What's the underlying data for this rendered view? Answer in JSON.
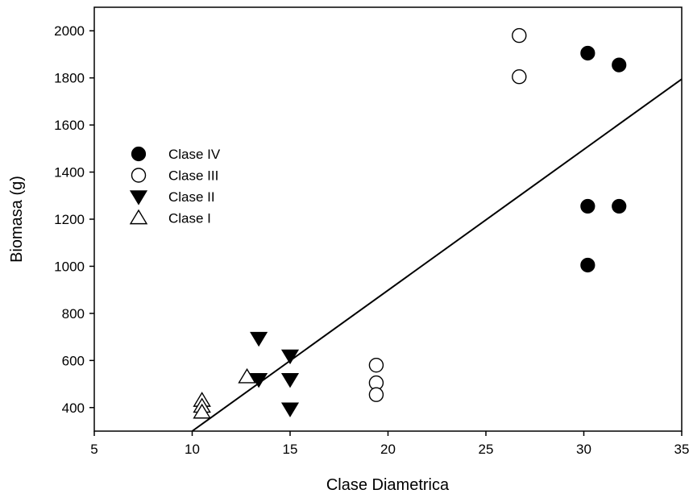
{
  "chart_data": {
    "type": "scatter",
    "xlabel": "Clase Diametrica",
    "ylabel": "Biomasa (g)",
    "xlim": [
      5,
      35
    ],
    "ylim": [
      300,
      2100
    ],
    "xticks": [
      5,
      10,
      15,
      20,
      25,
      30,
      35
    ],
    "yticks": [
      400,
      600,
      800,
      1000,
      1200,
      1400,
      1600,
      1800,
      2000
    ],
    "xtick_labels": [
      "5",
      "10",
      "15",
      "20",
      "25",
      "30",
      "35"
    ],
    "ytick_labels": [
      "400",
      "600",
      "800",
      "1000",
      "1200",
      "1400",
      "1600",
      "1800",
      "2000"
    ],
    "grid": false,
    "legend_position": "left-middle",
    "series": [
      {
        "name": "Clase IV",
        "marker": "filled-circle",
        "color": "#000000",
        "points": [
          [
            30.2,
            1905
          ],
          [
            31.8,
            1855
          ],
          [
            30.2,
            1255
          ],
          [
            31.8,
            1255
          ],
          [
            30.2,
            1005
          ]
        ]
      },
      {
        "name": "Clase III",
        "marker": "open-circle",
        "color": "#000000",
        "points": [
          [
            26.7,
            1980
          ],
          [
            26.7,
            1805
          ],
          [
            19.4,
            580
          ],
          [
            19.4,
            505
          ],
          [
            19.4,
            455
          ]
        ]
      },
      {
        "name": "Clase II",
        "marker": "filled-triangle-down",
        "color": "#000000",
        "points": [
          [
            13.4,
            695
          ],
          [
            13.4,
            520
          ],
          [
            15.0,
            620
          ],
          [
            15.0,
            520
          ],
          [
            15.0,
            395
          ]
        ]
      },
      {
        "name": "Clase I",
        "marker": "open-triangle-up",
        "color": "#000000",
        "points": [
          [
            10.5,
            430
          ],
          [
            10.5,
            405
          ],
          [
            10.5,
            380
          ],
          [
            12.8,
            530
          ]
        ]
      }
    ],
    "regression_line": {
      "x": [
        10.0,
        35.0
      ],
      "y": [
        300,
        1795
      ]
    }
  }
}
